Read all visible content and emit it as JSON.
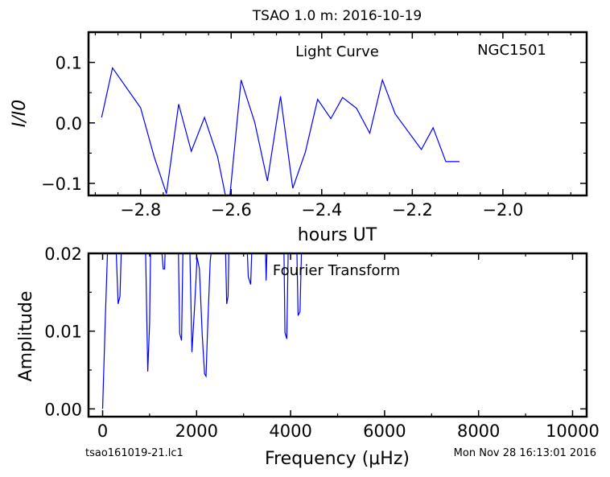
{
  "figure": {
    "title": "TSAO 1.0 m:  2016-10-19",
    "footer_left": "tsao161019-21.lc1",
    "footer_right": "Mon Nov 28 16:13:01 2016"
  },
  "chart_data": [
    {
      "type": "line",
      "annotation_center": "Light Curve",
      "annotation_right": "NGC1501",
      "xlabel": "hours UT",
      "ylabel": "I/I0",
      "xlim": [
        -2.915,
        -1.815
      ],
      "ylim": [
        -0.12,
        0.15
      ],
      "xticks": [
        -2.8,
        -2.6,
        -2.4,
        -2.2,
        -2.0
      ],
      "xtick_labels": [
        "−2.8",
        "−2.6",
        "−2.4",
        "−2.2",
        "−2.0"
      ],
      "yticks": [
        -0.1,
        0.0,
        0.1
      ],
      "ytick_labels": [
        "−0.1",
        "0.0",
        "0.1"
      ],
      "grid": false,
      "line_color": "#0000ff",
      "x": [
        -2.886,
        -2.862,
        -2.8,
        -2.77,
        -2.743,
        -2.716,
        -2.688,
        -2.659,
        -2.63,
        -2.606,
        -2.578,
        -2.548,
        -2.52,
        -2.491,
        -2.464,
        -2.436,
        -2.409,
        -2.38,
        -2.354,
        -2.323,
        -2.294,
        -2.266,
        -2.238,
        -2.18,
        -2.154,
        -2.126,
        -2.096
      ],
      "y": [
        0.009,
        0.091,
        0.025,
        -0.056,
        -0.117,
        0.031,
        -0.047,
        0.009,
        -0.056,
        -0.145,
        0.071,
        0.001,
        -0.096,
        0.044,
        -0.108,
        -0.048,
        0.039,
        0.007,
        0.042,
        0.024,
        -0.017,
        0.071,
        0.015,
        -0.044,
        -0.008,
        -0.064,
        -0.064
      ]
    },
    {
      "type": "line",
      "annotation_center": "Fourier Transform",
      "xlabel": "Frequency (μHz)",
      "ylabel": "Amplitude",
      "xlim": [
        -300,
        10300
      ],
      "ylim": [
        -0.001,
        0.02
      ],
      "xticks": [
        0,
        2000,
        4000,
        6000,
        8000,
        10000
      ],
      "xtick_labels": [
        "0",
        "2000",
        "4000",
        "6000",
        "8000",
        "10000"
      ],
      "yticks": [
        0.0,
        0.01,
        0.02
      ],
      "ytick_labels": [
        "0.00",
        "0.01",
        "0.02"
      ],
      "grid": false,
      "line_color": "#0000ff",
      "x": [
        0,
        60,
        130,
        180,
        260,
        330,
        370,
        420,
        480,
        900,
        960,
        1000,
        1030,
        1080,
        1200,
        1290,
        1320,
        1350,
        1600,
        1640,
        1680,
        1720,
        1840,
        1900,
        1960,
        2010,
        2060,
        2120,
        2170,
        2200,
        2230,
        2290,
        2400,
        2600,
        2640,
        2670,
        2700,
        2780,
        3050,
        3100,
        3150,
        3200,
        3450,
        3480,
        3520,
        3650,
        3720,
        3850,
        3880,
        3920,
        3960,
        4120,
        4160,
        4200,
        4250
      ],
      "y": [
        0.0,
        0.012,
        0.025,
        0.025,
        0.025,
        0.0135,
        0.0145,
        0.025,
        0.025,
        0.025,
        0.0048,
        0.011,
        0.025,
        0.025,
        0.025,
        0.018,
        0.018,
        0.025,
        0.025,
        0.0097,
        0.0088,
        0.025,
        0.025,
        0.0073,
        0.0135,
        0.0195,
        0.018,
        0.0095,
        0.0045,
        0.0042,
        0.0095,
        0.019,
        0.025,
        0.025,
        0.0135,
        0.0145,
        0.025,
        0.025,
        0.025,
        0.017,
        0.016,
        0.025,
        0.025,
        0.0165,
        0.025,
        0.025,
        0.025,
        0.025,
        0.0098,
        0.009,
        0.025,
        0.025,
        0.012,
        0.0125,
        0.025
      ]
    }
  ]
}
